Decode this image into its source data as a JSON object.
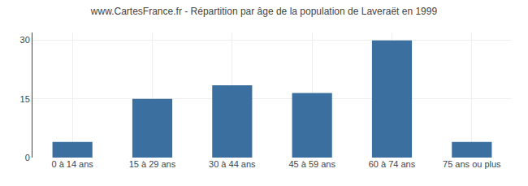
{
  "chart_data": {
    "type": "bar",
    "title": "www.CartesFrance.fr - Répartition par âge de la population de Laveraët en 1999",
    "categories": [
      "0 à 14 ans",
      "15 à 29 ans",
      "30 à 44 ans",
      "45 à 59 ans",
      "60 à 74 ans",
      "75 ans ou plus"
    ],
    "values": [
      4,
      15,
      18.5,
      16.5,
      30,
      4
    ],
    "color": "#3a6f9f",
    "ylim": [
      0,
      32
    ],
    "yticks": [
      0,
      15,
      30
    ],
    "grid": true
  }
}
